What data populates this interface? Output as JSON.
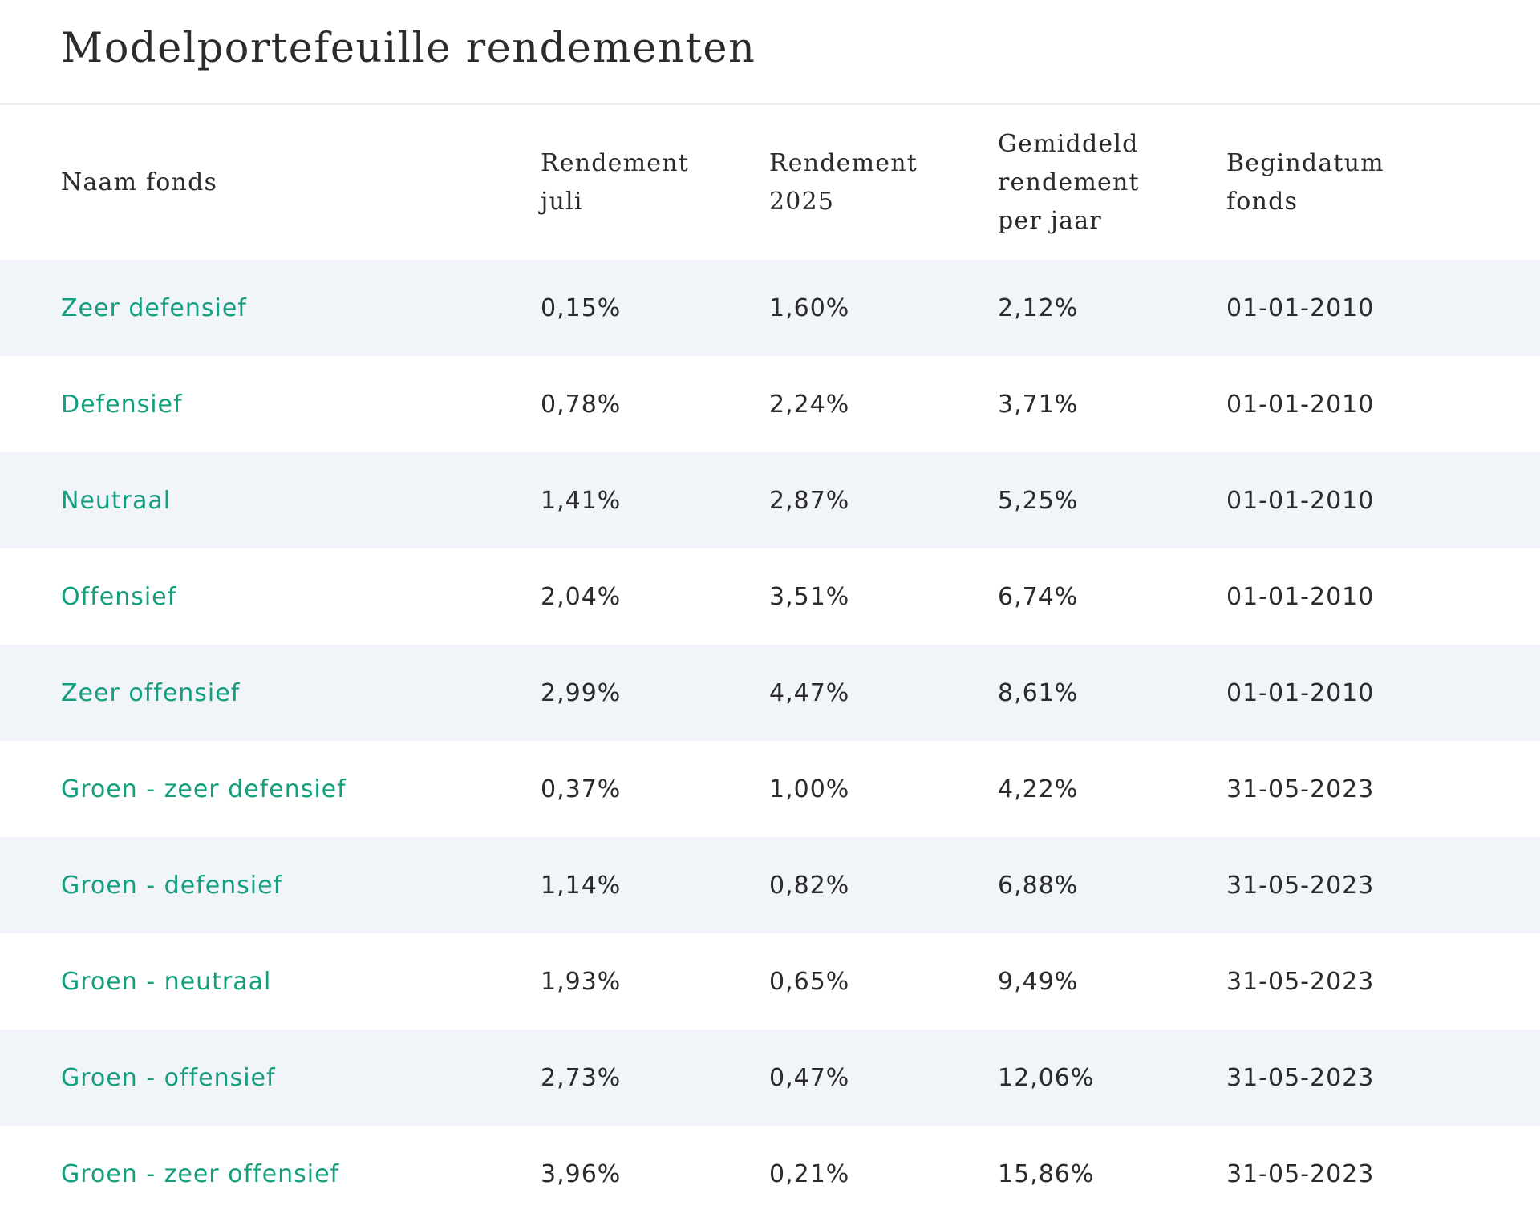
{
  "page": {
    "title": "Modelportefeuille rendementen"
  },
  "table": {
    "headers": {
      "name": [
        "Naam fonds"
      ],
      "return_month": [
        "Rendement",
        "juli"
      ],
      "return_year": [
        "Rendement",
        "2025"
      ],
      "avg_return": [
        "Gemiddeld",
        "rendement",
        "per jaar"
      ],
      "start_date": [
        "Begindatum",
        "fonds"
      ]
    },
    "rows": [
      {
        "name": "Zeer defensief",
        "return_month": "0,15%",
        "return_year": "1,60%",
        "avg_return": "2,12%",
        "start_date": "01-01-2010"
      },
      {
        "name": "Defensief",
        "return_month": "0,78%",
        "return_year": "2,24%",
        "avg_return": "3,71%",
        "start_date": "01-01-2010"
      },
      {
        "name": "Neutraal",
        "return_month": "1,41%",
        "return_year": "2,87%",
        "avg_return": "5,25%",
        "start_date": "01-01-2010"
      },
      {
        "name": "Offensief",
        "return_month": "2,04%",
        "return_year": "3,51%",
        "avg_return": "6,74%",
        "start_date": "01-01-2010"
      },
      {
        "name": "Zeer offensief",
        "return_month": "2,99%",
        "return_year": "4,47%",
        "avg_return": "8,61%",
        "start_date": "01-01-2010"
      },
      {
        "name": "Groen - zeer defensief",
        "return_month": "0,37%",
        "return_year": "1,00%",
        "avg_return": "4,22%",
        "start_date": "31-05-2023"
      },
      {
        "name": "Groen - defensief",
        "return_month": "1,14%",
        "return_year": "0,82%",
        "avg_return": "6,88%",
        "start_date": "31-05-2023"
      },
      {
        "name": "Groen - neutraal",
        "return_month": "1,93%",
        "return_year": "0,65%",
        "avg_return": "9,49%",
        "start_date": "31-05-2023"
      },
      {
        "name": "Groen - offensief",
        "return_month": "2,73%",
        "return_year": "0,47%",
        "avg_return": "12,06%",
        "start_date": "31-05-2023"
      },
      {
        "name": "Groen - zeer offensief",
        "return_month": "3,96%",
        "return_year": "0,21%",
        "avg_return": "15,86%",
        "start_date": "31-05-2023"
      }
    ]
  },
  "colors": {
    "link": "#139e7c",
    "text": "#2b2b2b",
    "stripe": "#f1f4f8",
    "divider": "#eef0f3"
  }
}
